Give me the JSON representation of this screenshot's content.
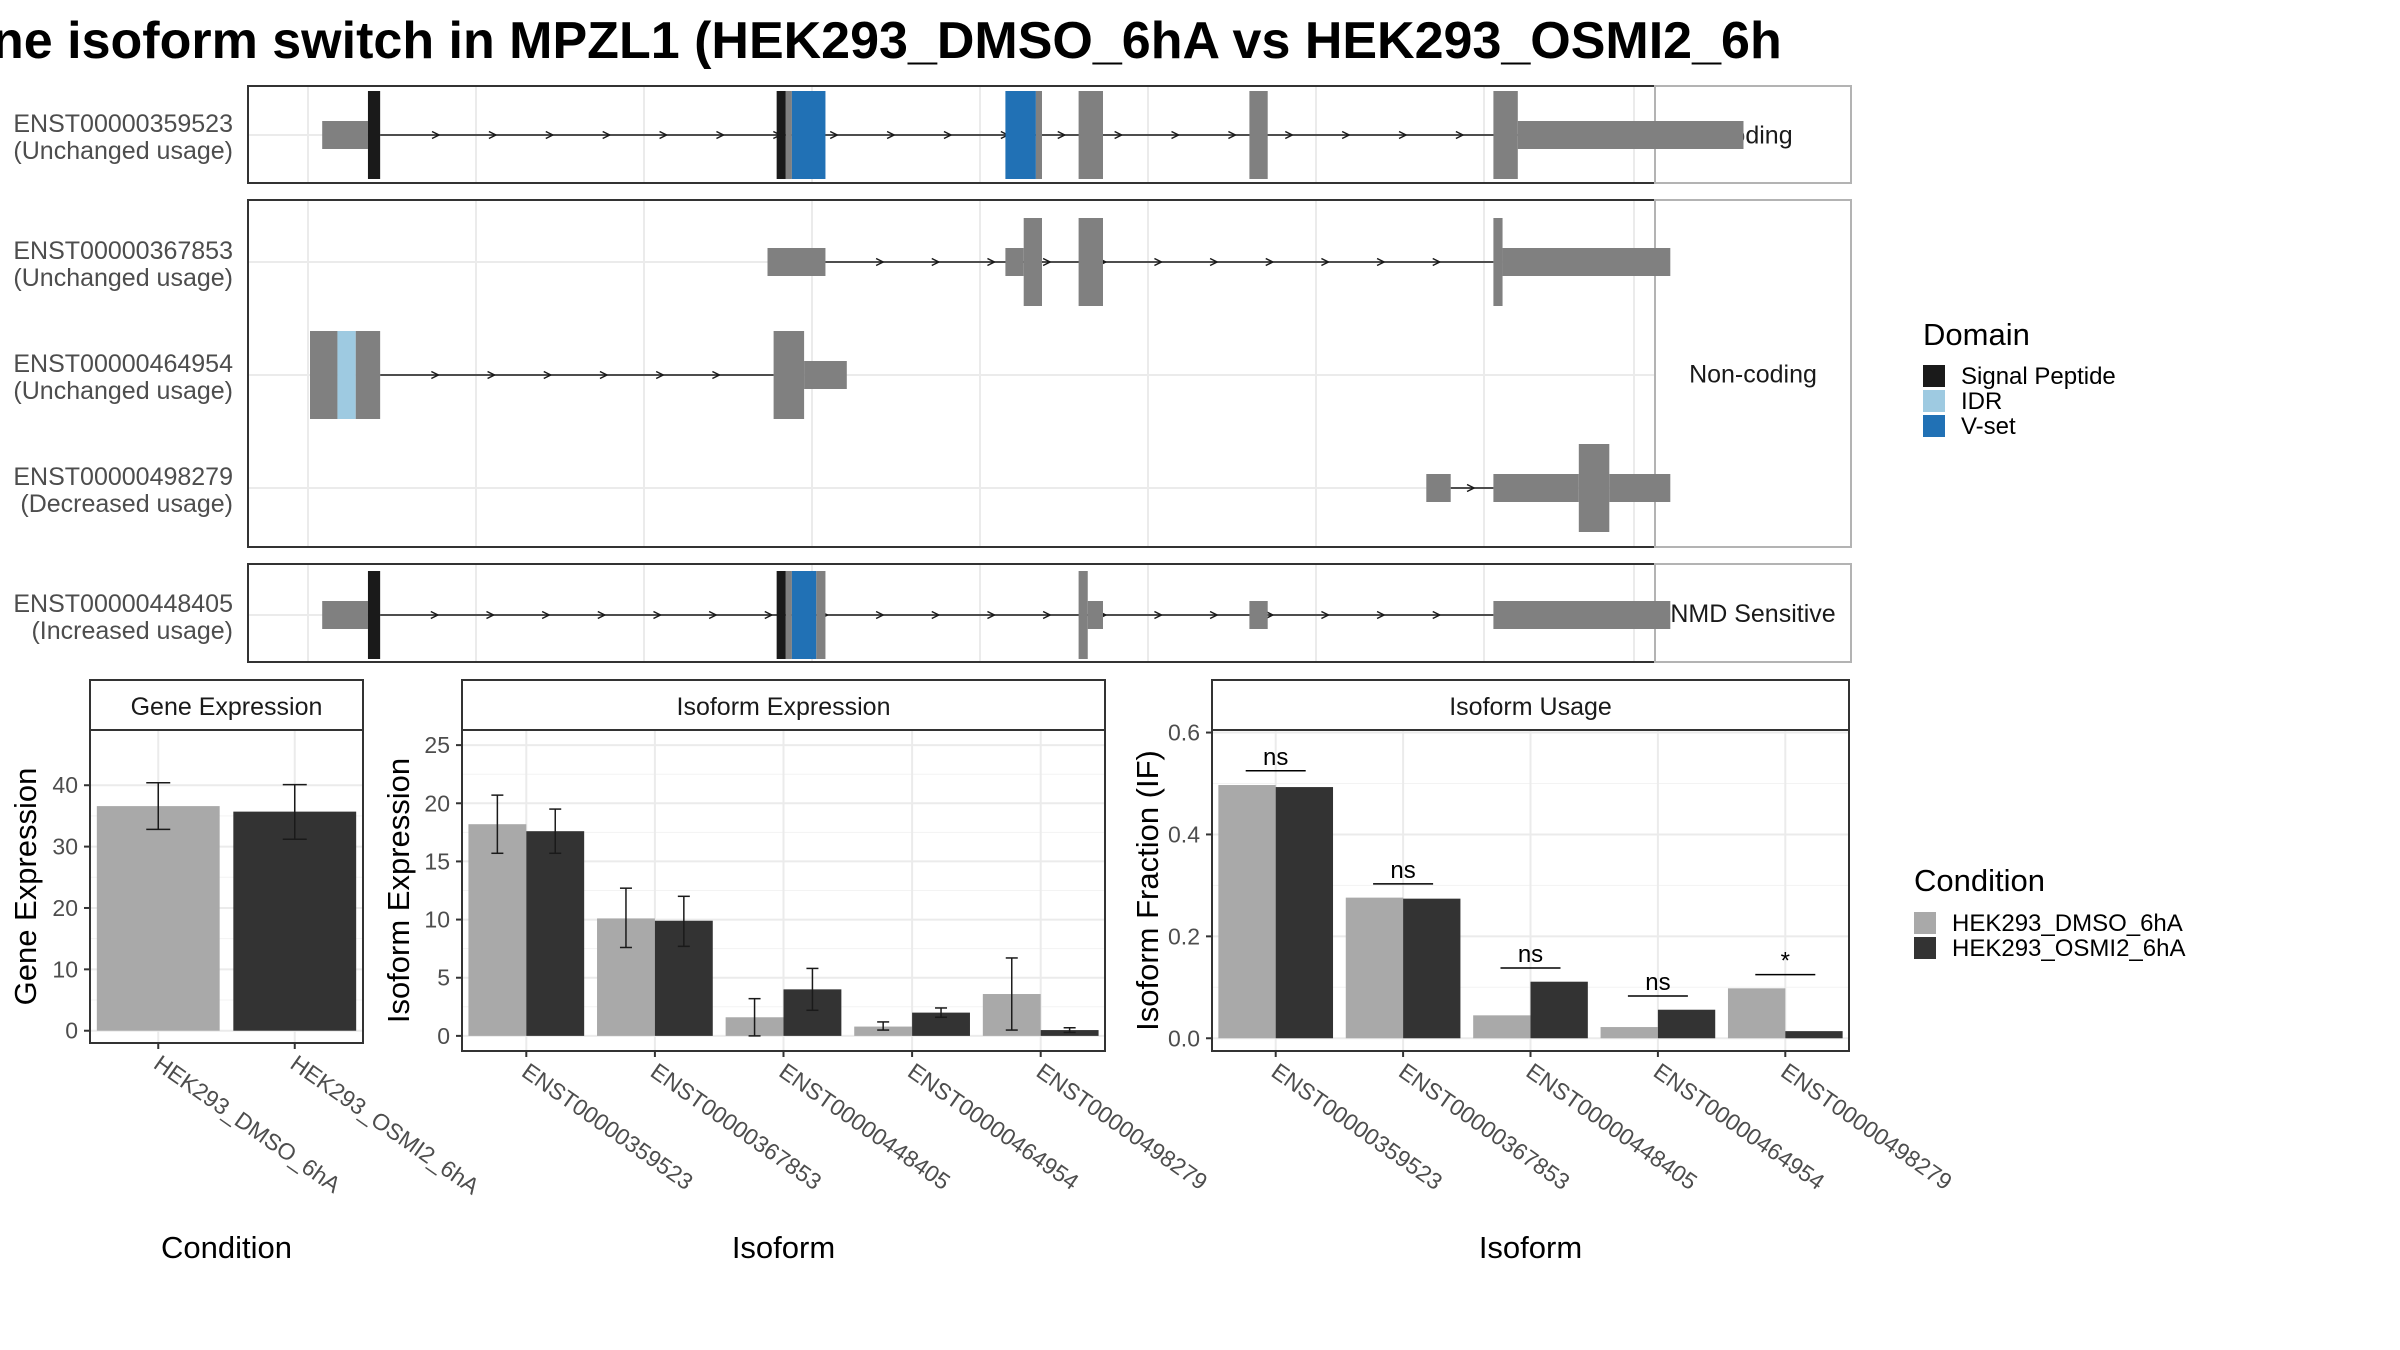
{
  "title": "ne isoform switch in MPZL1 (HEK293_DMSO_6hA vs HEK293_OSMI2_6h",
  "colors": {
    "exon": "#808080",
    "signal_peptide": "#1a1a1a",
    "idr": "#9ecae1",
    "vset": "#2171b5",
    "dmso": "#a9a9a9",
    "osmi": "#333333",
    "grid": "#ebebeb",
    "strip_fill": "#ffffff"
  },
  "transcript_plot": {
    "facets": [
      {
        "label": "Coding",
        "transcripts": [
          {
            "id": "ENST00000359523",
            "usage": "(Unchanged usage)",
            "exons": [
              [
                0.2,
                0.95,
                "s"
              ],
              [
                0.95,
                1.15,
                "t",
                "signal_peptide"
              ],
              [
                7.65,
                7.8,
                "t",
                "signal_peptide"
              ],
              [
                7.8,
                7.9,
                "t"
              ],
              [
                7.9,
                8.45,
                "t",
                "vset"
              ],
              [
                11.4,
                11.9,
                "t",
                "vset"
              ],
              [
                11.9,
                12.0,
                "t"
              ],
              [
                12.6,
                13.0,
                "t"
              ],
              [
                15.4,
                15.7,
                "t"
              ],
              [
                19.4,
                19.8,
                "t"
              ],
              [
                19.8,
                23.5,
                "s"
              ]
            ],
            "intron": [
              1.15,
              19.8
            ]
          }
        ]
      },
      {
        "label": "Non-coding",
        "transcripts": [
          {
            "id": "ENST00000367853",
            "usage": "(Unchanged usage)",
            "exons": [
              [
                7.5,
                8.45,
                "s"
              ],
              [
                11.4,
                11.7,
                "s"
              ],
              [
                11.7,
                12.0,
                "t"
              ],
              [
                12.6,
                13.0,
                "t"
              ],
              [
                19.4,
                19.55,
                "t"
              ],
              [
                19.55,
                22.3,
                "s"
              ]
            ],
            "intron": [
              8.45,
              19.4
            ]
          },
          {
            "id": "ENST00000464954",
            "usage": "(Unchanged usage)",
            "exons": [
              [
                0.0,
                0.45,
                "t"
              ],
              [
                0.45,
                0.75,
                "t",
                "idr"
              ],
              [
                0.75,
                1.15,
                "t"
              ],
              [
                7.6,
                8.1,
                "t"
              ],
              [
                8.1,
                8.8,
                "s"
              ]
            ],
            "intron": [
              1.15,
              7.6
            ]
          },
          {
            "id": "ENST00000498279",
            "usage": "(Decreased usage)",
            "exons": [
              [
                18.3,
                18.7,
                "s"
              ],
              [
                19.4,
                20.8,
                "s"
              ],
              [
                20.8,
                21.3,
                "t"
              ],
              [
                21.3,
                22.3,
                "s"
              ]
            ],
            "intron": [
              18.7,
              19.4
            ]
          }
        ]
      },
      {
        "label": "NMD Sensitive",
        "transcripts": [
          {
            "id": "ENST00000448405",
            "usage": "(Increased usage)",
            "exons": [
              [
                0.2,
                0.95,
                "s"
              ],
              [
                0.95,
                1.15,
                "t",
                "signal_peptide"
              ],
              [
                7.65,
                7.8,
                "t",
                "signal_peptide"
              ],
              [
                7.8,
                7.9,
                "t"
              ],
              [
                7.9,
                8.3,
                "t",
                "vset"
              ],
              [
                8.3,
                8.45,
                "t"
              ],
              [
                12.6,
                12.75,
                "t"
              ],
              [
                12.75,
                13.0,
                "s"
              ],
              [
                15.4,
                15.7,
                "s"
              ],
              [
                19.4,
                22.3,
                "s"
              ]
            ],
            "intron": [
              1.15,
              19.4
            ]
          }
        ]
      }
    ],
    "legend": {
      "title": "Domain",
      "items": [
        "Signal Peptide",
        "IDR",
        "V-set"
      ]
    }
  },
  "chart_data": [
    {
      "type": "bar",
      "title": "Gene Expression",
      "xlabel": "Condition",
      "ylabel": "Gene Expression",
      "categories": [
        "HEK293_DMSO_6hA",
        "HEK293_OSMI2_6hA"
      ],
      "values": [
        36.6,
        35.7
      ],
      "errors": [
        [
          32.8,
          40.4
        ],
        [
          31.2,
          40.1
        ]
      ],
      "ylim": [
        -2,
        49
      ],
      "yticks": [
        0,
        10,
        20,
        30,
        40
      ]
    },
    {
      "type": "bar",
      "title": "Isoform Expression",
      "xlabel": "Isoform",
      "ylabel": "Isoform Expression",
      "categories": [
        "ENST00000359523",
        "ENST00000367853",
        "ENST00000448405",
        "ENST00000464954",
        "ENST00000498279"
      ],
      "series": [
        {
          "name": "HEK293_DMSO_6hA",
          "values": [
            18.2,
            10.1,
            1.6,
            0.8,
            3.6
          ],
          "errors": [
            [
              15.7,
              20.7
            ],
            [
              7.6,
              12.7
            ],
            [
              0.0,
              3.2
            ],
            [
              0.5,
              1.2
            ],
            [
              0.5,
              6.7
            ]
          ]
        },
        {
          "name": "HEK293_OSMI2_6hA",
          "values": [
            17.6,
            9.9,
            4.0,
            2.0,
            0.5
          ],
          "errors": [
            [
              15.7,
              19.5
            ],
            [
              7.7,
              12.0
            ],
            [
              2.2,
              5.8
            ],
            [
              1.6,
              2.4
            ],
            [
              0.3,
              0.7
            ]
          ]
        }
      ],
      "ylim": [
        -1.3,
        26.3
      ],
      "yticks": [
        0,
        5,
        10,
        15,
        20,
        25
      ]
    },
    {
      "type": "bar",
      "title": "Isoform Usage",
      "xlabel": "Isoform",
      "ylabel": "Isoform Fraction (IF)",
      "categories": [
        "ENST00000359523",
        "ENST00000367853",
        "ENST00000448405",
        "ENST00000464954",
        "ENST00000498279"
      ],
      "series": [
        {
          "name": "HEK293_DMSO_6hA",
          "values": [
            0.497,
            0.276,
            0.045,
            0.022,
            0.098
          ]
        },
        {
          "name": "HEK293_OSMI2_6hA",
          "values": [
            0.493,
            0.274,
            0.111,
            0.056,
            0.014
          ]
        }
      ],
      "significance": [
        "ns",
        "ns",
        "ns",
        "ns",
        "*"
      ],
      "significance_y": [
        0.525,
        0.303,
        0.138,
        0.083,
        0.125
      ],
      "ylim": [
        -0.025,
        0.605
      ],
      "yticks": [
        0.0,
        0.2,
        0.4,
        0.6
      ],
      "ytick_labels": [
        "0.0",
        "0.2",
        "0.4",
        "0.6"
      ]
    }
  ],
  "condition_legend": {
    "title": "Condition",
    "items": [
      "HEK293_DMSO_6hA",
      "HEK293_OSMI2_6hA"
    ]
  }
}
